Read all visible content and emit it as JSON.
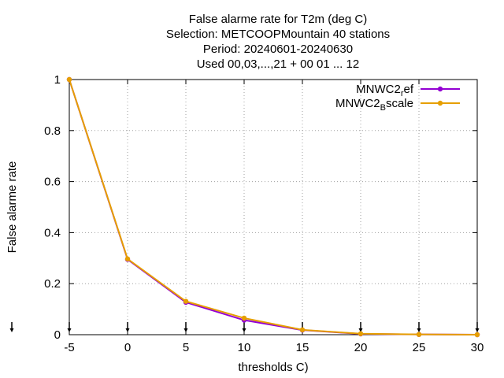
{
  "chart_data": {
    "type": "line",
    "title_lines": [
      "False alarme rate  for T2m (deg C)",
      "Selection: METCOOPMountain     40 stations",
      "Period: 20240601-20240630",
      "Used 00,03,...,21 + 00 01 ... 12"
    ],
    "xlabel": "thresholds C)",
    "ylabel": "False alarme rate",
    "xlim": [
      -5,
      30
    ],
    "ylim": [
      0,
      1
    ],
    "xticks": [
      "-5",
      "0",
      "5",
      "10",
      "15",
      "20",
      "25",
      "30"
    ],
    "yticks": [
      "0",
      "0.2",
      "0.4",
      "0.6",
      "0.8",
      "1"
    ],
    "grid": true,
    "legend_position": "top-right",
    "x": [
      -5,
      0,
      5,
      10,
      15,
      20,
      25,
      30
    ],
    "series": [
      {
        "name": "MNWC2_ref",
        "label_main": "MNWC2",
        "label_sub": "r",
        "label_rest": "ef",
        "color": "#9400d3",
        "values": [
          1.0,
          0.295,
          0.127,
          0.057,
          0.018,
          0.003,
          0.001,
          0.0
        ]
      },
      {
        "name": "MNWC2_Bscale",
        "label_main": "MNWC2",
        "label_sub": "B",
        "label_rest": "scale",
        "color": "#e69f00",
        "values": [
          1.0,
          0.297,
          0.131,
          0.065,
          0.019,
          0.004,
          0.001,
          0.0
        ]
      }
    ]
  }
}
